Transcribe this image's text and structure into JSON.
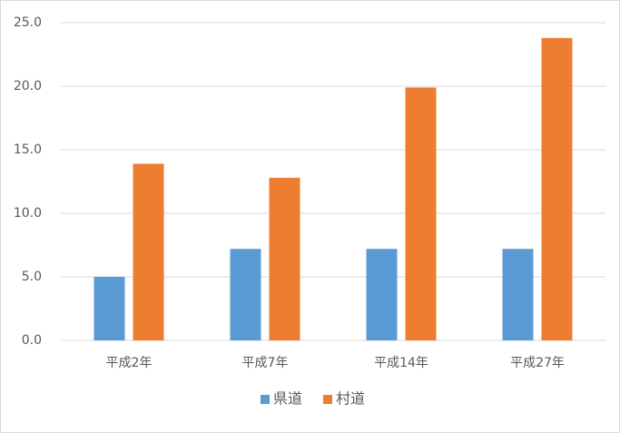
{
  "chart_data": {
    "type": "bar",
    "categories": [
      "平成2年",
      "平成7年",
      "平成14年",
      "平成27年"
    ],
    "series": [
      {
        "name": "県道",
        "color": "#5b9bd5",
        "values": [
          5.0,
          7.2,
          7.2,
          7.2
        ]
      },
      {
        "name": "村道",
        "color": "#ed7d31",
        "values": [
          13.9,
          12.8,
          19.9,
          23.8
        ]
      }
    ],
    "ylim": [
      0,
      25
    ],
    "yticks": [
      {
        "value": 0,
        "label": "0.0"
      },
      {
        "value": 5,
        "label": "5.0"
      },
      {
        "value": 10,
        "label": "10.0"
      },
      {
        "value": 15,
        "label": "15.0"
      },
      {
        "value": 20,
        "label": "20.0"
      },
      {
        "value": 25,
        "label": "25.0"
      }
    ],
    "grid": true,
    "legend": "bottom"
  }
}
